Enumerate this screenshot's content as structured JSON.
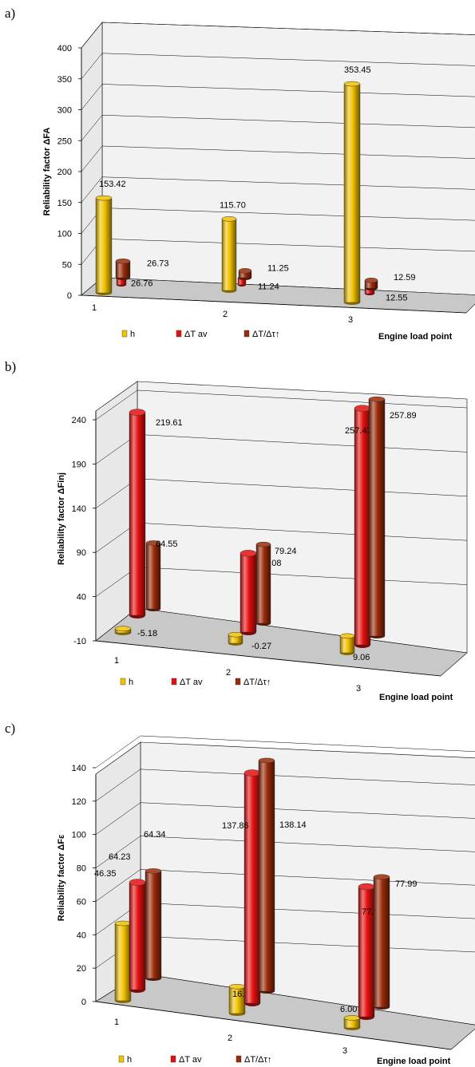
{
  "colors": {
    "h": "#f2c200",
    "dtav": "#e50f0f",
    "dttau": "#9a2a08",
    "floor": "#c8c8c8",
    "wall": "#f2f2f2",
    "grid": "#000000"
  },
  "chart_data": [
    {
      "type": "bar",
      "panel_label": "a)",
      "categories": [
        "1",
        "2",
        "3"
      ],
      "xlabel": "Engine load point",
      "ylabel": "Reliability factor ΔFA",
      "ylim": [
        0,
        400
      ],
      "yticks": [
        0,
        50,
        100,
        150,
        200,
        250,
        300,
        350,
        400
      ],
      "series": [
        {
          "name": "h",
          "values": [
            153.42,
            115.7,
            353.45
          ],
          "labels": [
            "153.42",
            "115.70",
            "353.45"
          ]
        },
        {
          "name": "ΔT av",
          "values": [
            26.76,
            11.24,
            12.55
          ],
          "labels": [
            "26.76",
            "11.24",
            "12.55"
          ]
        },
        {
          "name": "ΔT/Δτ↑",
          "values": [
            26.73,
            11.25,
            12.59
          ],
          "labels": [
            "26.73",
            "11.25",
            "12.59"
          ]
        }
      ]
    },
    {
      "type": "bar",
      "panel_label": "b)",
      "categories": [
        "1",
        "2",
        "3"
      ],
      "xlabel": "Engine load point",
      "ylabel": "Reliability factor ΔFinj",
      "ylim": [
        -10,
        240
      ],
      "yticks": [
        -10,
        40,
        90,
        140,
        190,
        240
      ],
      "series": [
        {
          "name": "h",
          "values": [
            -5.18,
            -0.27,
            9.06
          ],
          "labels": [
            "-5.18",
            "-0.27",
            "9.06"
          ]
        },
        {
          "name": "ΔT av",
          "values": [
            219.61,
            79.08,
            257.43
          ],
          "labels": [
            "219.61",
            "79.08",
            "257.43"
          ]
        },
        {
          "name": "ΔT/Δτ↑",
          "values": [
            64.55,
            79.24,
            257.89
          ],
          "labels": [
            "64.55",
            "79.24",
            "257.89"
          ]
        }
      ]
    },
    {
      "type": "bar",
      "panel_label": "c)",
      "categories": [
        "1",
        "2",
        "3"
      ],
      "xlabel": "Engine load point",
      "ylabel": "Reliability factor ΔFε",
      "ylim": [
        0,
        140
      ],
      "yticks": [
        0,
        20,
        40,
        60,
        80,
        100,
        120,
        140
      ],
      "series": [
        {
          "name": "h",
          "values": [
            46.35,
            16.13,
            6.0
          ],
          "labels": [
            "46.35",
            "16.13",
            "6.00"
          ]
        },
        {
          "name": "ΔT av",
          "values": [
            64.23,
            137.86,
            77.85
          ],
          "labels": [
            "64.23",
            "137.86",
            "77.85"
          ]
        },
        {
          "name": "ΔT/Δτ↑",
          "values": [
            64.34,
            138.14,
            77.99
          ],
          "labels": [
            "64.34",
            "138.14",
            "77.99"
          ]
        }
      ]
    }
  ]
}
